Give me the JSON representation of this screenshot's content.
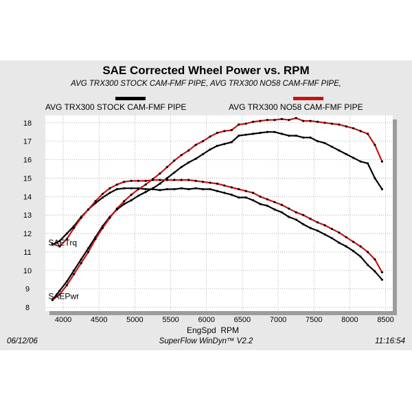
{
  "header": {
    "title": "SAE Corrected Wheel Power vs. RPM",
    "subtitle": "AVG TRX300 STOCK CAM-FMF PIPE, AVG TRX300 NO58 CAM-FMF PIPE,"
  },
  "footer": {
    "date": "06/12/06",
    "software": "SuperFlow WinDyn™ V2.2",
    "time": "11:16:54"
  },
  "colors": {
    "stock": "#000000",
    "no58": "#cc1111",
    "plot_background": "#ffffff",
    "panel_background": "#e8e8e8",
    "grid": "#9a9a9a",
    "shadow": "#9c9c9c"
  },
  "chart_data": {
    "type": "line",
    "title": "SAE Corrected Wheel Power vs. RPM",
    "xlabel": "EngSpd  RPM",
    "ylabel": "",
    "xlim": [
      3750,
      8600
    ],
    "ylim": [
      7.8,
      18.4
    ],
    "xticks": [
      4000,
      4500,
      5000,
      5500,
      6000,
      6500,
      7000,
      7500,
      8000,
      8500
    ],
    "yticks": [
      8,
      9,
      10,
      11,
      12,
      13,
      14,
      15,
      16,
      17,
      18
    ],
    "grid": true,
    "legend_position": "top",
    "annotations": [
      {
        "text": "SAETrq",
        "x": 3850,
        "y": 11.5
      },
      {
        "text": "SAEPwr",
        "x": 3850,
        "y": 8.6
      }
    ],
    "series": [
      {
        "name": "AVG TRX300 STOCK CAM-FMF PIPE",
        "key": "stock",
        "measure": "SAEPwr",
        "x": [
          3850,
          3950,
          4050,
          4150,
          4250,
          4350,
          4450,
          4550,
          4650,
          4750,
          4850,
          4950,
          5050,
          5150,
          5250,
          5350,
          5450,
          5550,
          5650,
          5750,
          5850,
          5950,
          6050,
          6150,
          6250,
          6350,
          6450,
          6550,
          6650,
          6750,
          6850,
          6950,
          7050,
          7150,
          7250,
          7350,
          7450,
          7550,
          7650,
          7750,
          7850,
          7950,
          8050,
          8150,
          8250,
          8350,
          8450
        ],
        "y": [
          8.4,
          8.9,
          9.4,
          10.0,
          10.6,
          11.2,
          11.8,
          12.4,
          12.9,
          13.3,
          13.6,
          13.8,
          14.05,
          14.25,
          14.45,
          14.7,
          15.0,
          15.3,
          15.6,
          15.85,
          16.05,
          16.3,
          16.55,
          16.75,
          16.85,
          16.95,
          17.3,
          17.35,
          17.4,
          17.45,
          17.5,
          17.5,
          17.4,
          17.3,
          17.3,
          17.2,
          17.2,
          17.0,
          16.9,
          16.7,
          16.5,
          16.3,
          16.1,
          15.9,
          15.8,
          15.0,
          14.4
        ]
      },
      {
        "name": "AVG TRX300 STOCK CAM-FMF PIPE",
        "key": "stock",
        "measure": "SAETrq",
        "x": [
          3850,
          3950,
          4050,
          4150,
          4250,
          4350,
          4450,
          4550,
          4650,
          4750,
          4850,
          4950,
          5050,
          5150,
          5250,
          5350,
          5450,
          5550,
          5650,
          5750,
          5850,
          5950,
          6050,
          6150,
          6250,
          6350,
          6450,
          6550,
          6650,
          6750,
          6850,
          6950,
          7050,
          7150,
          7250,
          7350,
          7450,
          7550,
          7650,
          7750,
          7850,
          7950,
          8050,
          8150,
          8250,
          8350,
          8450
        ],
        "y": [
          11.4,
          11.6,
          12.0,
          12.4,
          12.9,
          13.3,
          13.65,
          13.95,
          14.2,
          14.4,
          14.45,
          14.45,
          14.45,
          14.4,
          14.4,
          14.35,
          14.4,
          14.4,
          14.45,
          14.4,
          14.45,
          14.4,
          14.4,
          14.3,
          14.2,
          14.1,
          13.95,
          13.95,
          13.8,
          13.6,
          13.5,
          13.3,
          13.15,
          12.9,
          12.75,
          12.5,
          12.3,
          12.15,
          11.95,
          11.75,
          11.5,
          11.3,
          11.05,
          10.75,
          10.3,
          9.95,
          9.5
        ]
      },
      {
        "name": "AVG TRX300 NO58 CAM-FMF PIPE",
        "key": "no58",
        "measure": "SAEPwr",
        "x": [
          3850,
          3950,
          4050,
          4150,
          4250,
          4350,
          4450,
          4550,
          4650,
          4750,
          4850,
          4950,
          5050,
          5150,
          5250,
          5350,
          5450,
          5550,
          5650,
          5750,
          5850,
          5950,
          6050,
          6150,
          6250,
          6350,
          6450,
          6550,
          6650,
          6750,
          6850,
          6950,
          7050,
          7150,
          7250,
          7350,
          7450,
          7550,
          7650,
          7750,
          7850,
          7950,
          8050,
          8150,
          8250,
          8350,
          8450
        ],
        "y": [
          8.4,
          8.7,
          9.2,
          9.8,
          10.4,
          11.0,
          11.7,
          12.3,
          12.85,
          13.35,
          13.75,
          14.1,
          14.4,
          14.65,
          14.95,
          15.25,
          15.6,
          15.95,
          16.25,
          16.5,
          16.8,
          17.0,
          17.25,
          17.45,
          17.55,
          17.6,
          17.9,
          17.95,
          18.05,
          18.1,
          18.15,
          18.15,
          18.2,
          18.15,
          18.25,
          18.1,
          18.1,
          18.05,
          18.0,
          17.95,
          17.9,
          17.8,
          17.7,
          17.55,
          17.4,
          16.8,
          15.9
        ]
      },
      {
        "name": "AVG TRX300 NO58 CAM-FMF PIPE",
        "key": "no58",
        "measure": "SAETrq",
        "x": [
          3850,
          3950,
          4050,
          4150,
          4250,
          4350,
          4450,
          4550,
          4650,
          4750,
          4850,
          4950,
          5050,
          5150,
          5250,
          5350,
          5450,
          5550,
          5650,
          5750,
          5850,
          5950,
          6050,
          6150,
          6250,
          6350,
          6450,
          6550,
          6650,
          6750,
          6850,
          6950,
          7050,
          7150,
          7250,
          7350,
          7450,
          7550,
          7650,
          7750,
          7850,
          7950,
          8050,
          8150,
          8250,
          8350,
          8450
        ],
        "y": [
          11.45,
          11.3,
          11.7,
          12.3,
          12.85,
          13.3,
          13.75,
          14.15,
          14.45,
          14.65,
          14.8,
          14.85,
          14.85,
          14.85,
          14.9,
          14.9,
          14.9,
          14.9,
          14.9,
          14.9,
          14.85,
          14.8,
          14.75,
          14.7,
          14.6,
          14.5,
          14.4,
          14.3,
          14.2,
          14.0,
          13.85,
          13.7,
          13.55,
          13.35,
          13.15,
          13.0,
          12.8,
          12.6,
          12.45,
          12.25,
          12.05,
          11.8,
          11.55,
          11.3,
          11.0,
          10.6,
          9.9
        ]
      }
    ]
  }
}
